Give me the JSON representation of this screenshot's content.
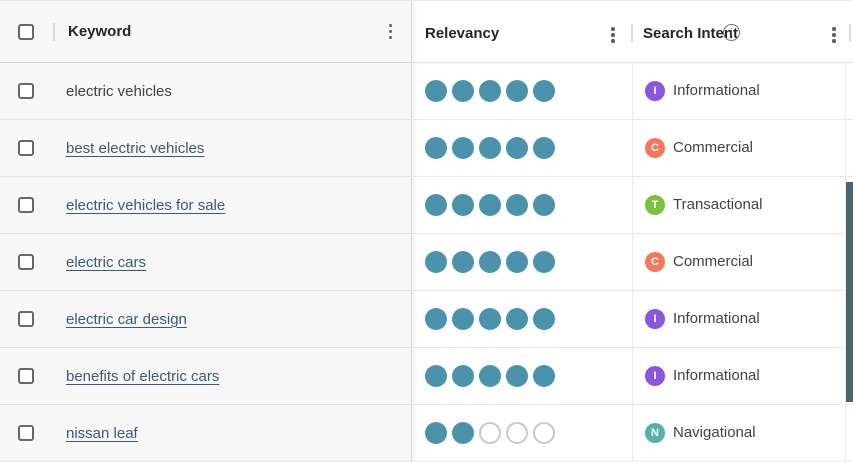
{
  "table": {
    "columns": [
      {
        "label": "Keyword"
      },
      {
        "label": "Relevancy"
      },
      {
        "label": "Search Intent",
        "has_info_icon": true
      }
    ],
    "relevancy_max": 5,
    "rows": [
      {
        "keyword": "electric vehicles",
        "is_link": false,
        "relevancy": 5,
        "intent": {
          "letter": "I",
          "label": "Informational",
          "color": "#8a56e0"
        }
      },
      {
        "keyword": "best electric vehicles",
        "is_link": true,
        "relevancy": 5,
        "intent": {
          "letter": "C",
          "label": "Commercial",
          "color": "#f4795b"
        }
      },
      {
        "keyword": "electric vehicles for sale",
        "is_link": true,
        "relevancy": 5,
        "intent": {
          "letter": "T",
          "label": "Transactional",
          "color": "#7cc13e"
        }
      },
      {
        "keyword": "electric cars",
        "is_link": true,
        "relevancy": 5,
        "intent": {
          "letter": "C",
          "label": "Commercial",
          "color": "#f4795b"
        }
      },
      {
        "keyword": "electric car design",
        "is_link": true,
        "relevancy": 5,
        "intent": {
          "letter": "I",
          "label": "Informational",
          "color": "#8a56e0"
        }
      },
      {
        "keyword": "benefits of electric cars",
        "is_link": true,
        "relevancy": 5,
        "intent": {
          "letter": "I",
          "label": "Informational",
          "color": "#8a56e0"
        }
      },
      {
        "keyword": "nissan leaf",
        "is_link": true,
        "relevancy": 2,
        "intent": {
          "letter": "N",
          "label": "Navigational",
          "color": "#52b3a6"
        }
      }
    ]
  },
  "icons": {
    "column_menu": "kebab-menu-icon",
    "search_intent_info": "info-icon",
    "info_glyph": "i"
  },
  "colors": {
    "relevancy_dot_filled": "#4b93ab",
    "relevancy_dot_empty_border": "#c9c9c9",
    "link_text": "#3e5974",
    "scrollbar_thumb": "#4a6470"
  }
}
